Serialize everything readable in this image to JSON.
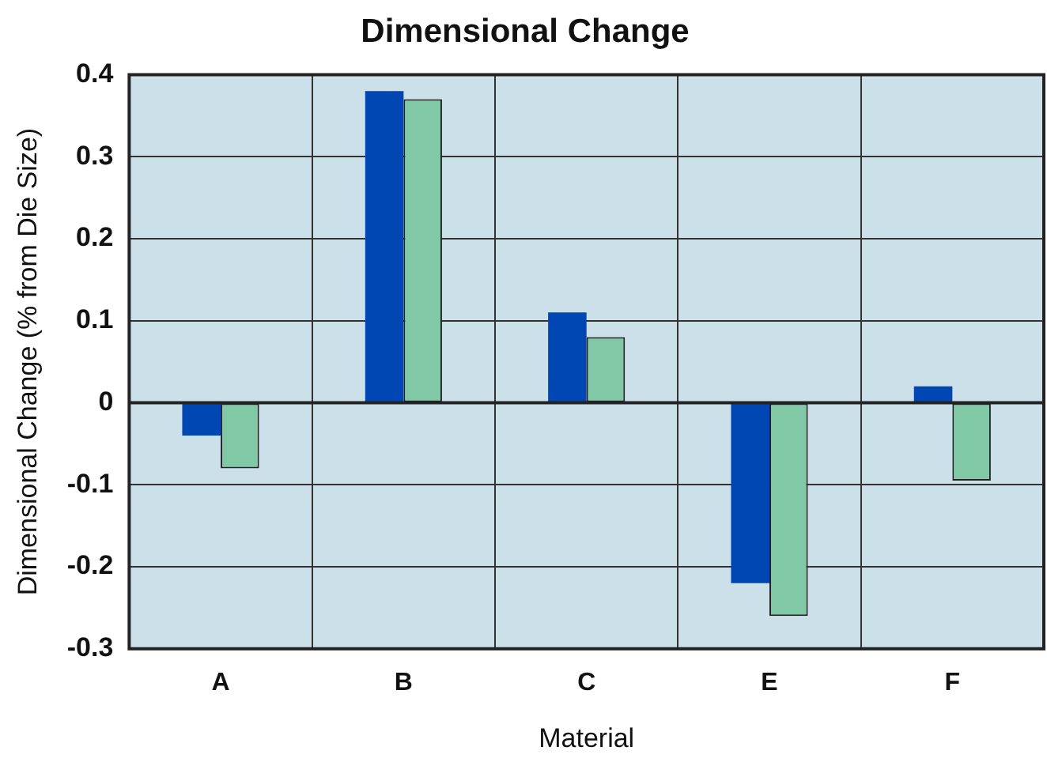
{
  "chart_data": {
    "type": "bar",
    "title": "Dimensional Change",
    "xlabel": "Material",
    "ylabel": "Dimensional Change (% from Die Size)",
    "categories": [
      "A",
      "B",
      "C",
      "E",
      "F"
    ],
    "series": [
      {
        "color": "#0047b3",
        "values": [
          -0.04,
          0.38,
          0.11,
          -0.22,
          0.02
        ]
      },
      {
        "color": "#80c8a6",
        "values": [
          -0.08,
          0.37,
          0.08,
          -0.26,
          -0.095
        ]
      }
    ],
    "ylim": [
      -0.3,
      0.4
    ],
    "yticks": [
      -0.3,
      -0.2,
      -0.1,
      0,
      0.1,
      0.2,
      0.3,
      0.4
    ],
    "grid": true,
    "legend": false
  }
}
